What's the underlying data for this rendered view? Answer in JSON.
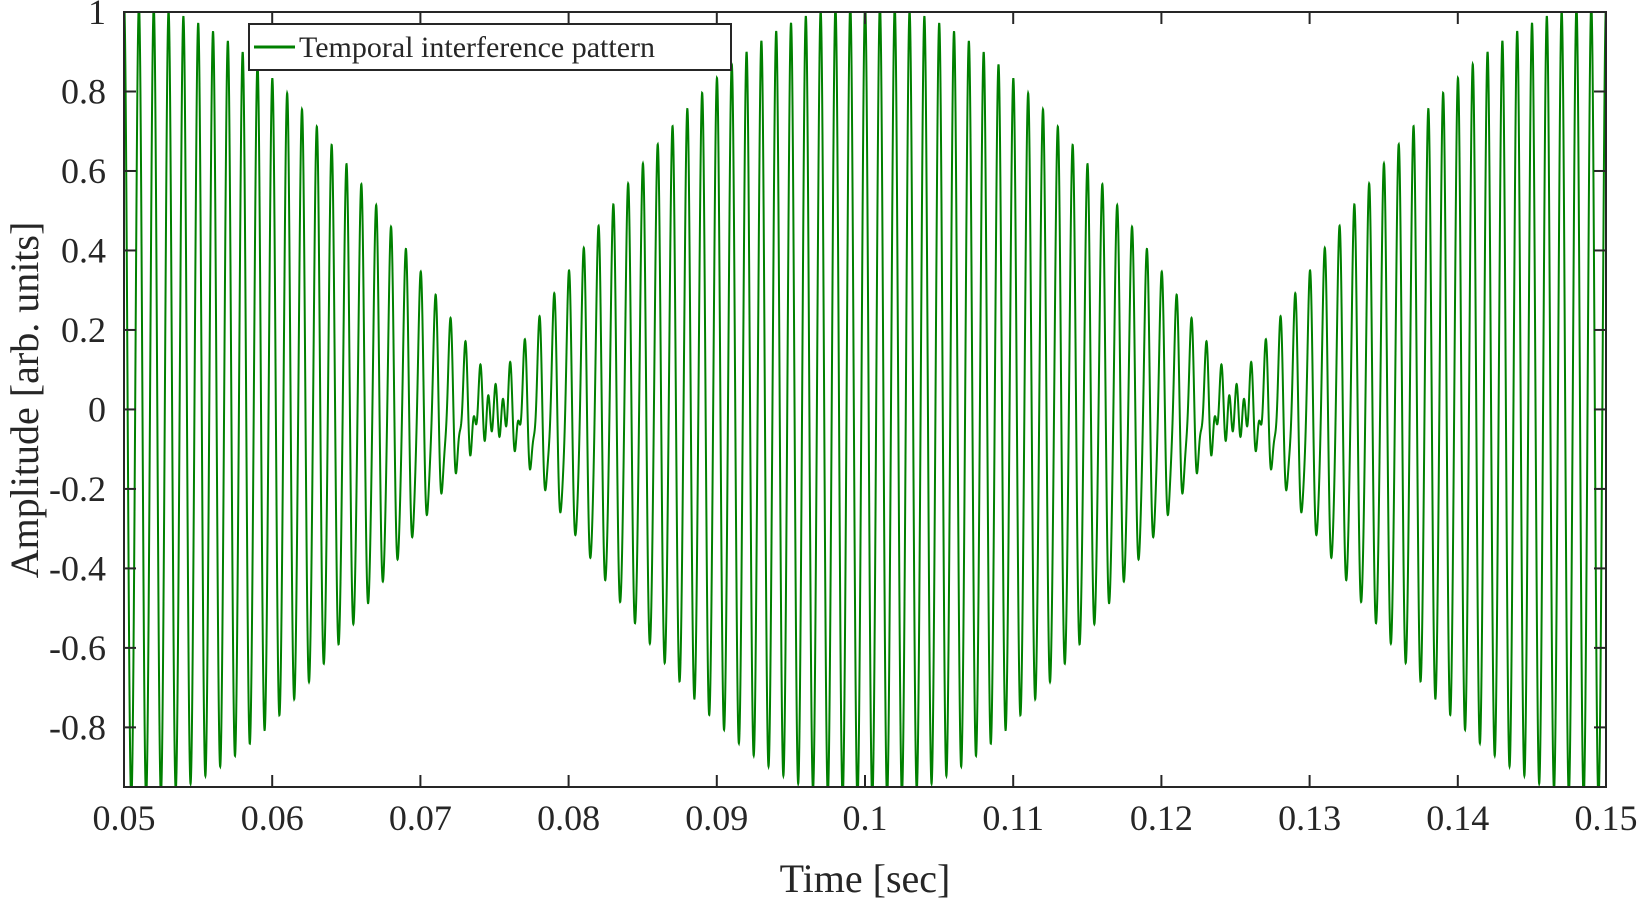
{
  "chart_data": {
    "type": "line",
    "title": "",
    "xlabel": "Time [sec]",
    "ylabel": "Amplitude [arb. units]",
    "xlim": [
      0.05,
      0.15
    ],
    "ylim": [
      -0.95,
      1.0
    ],
    "x_ticks": [
      0.05,
      0.06,
      0.07,
      0.08,
      0.09,
      0.1,
      0.11,
      0.12,
      0.13,
      0.14,
      0.15
    ],
    "x_tick_labels": [
      "0.05",
      "0.06",
      "0.07",
      "0.08",
      "0.09",
      "0.1",
      "0.11",
      "0.12",
      "0.13",
      "0.14",
      "0.15"
    ],
    "y_ticks": [
      -0.8,
      -0.6,
      -0.4,
      -0.2,
      0,
      0.2,
      0.4,
      0.6,
      0.8,
      1
    ],
    "y_tick_labels": [
      "-0.8",
      "-0.6",
      "-0.4",
      "-0.2",
      "0",
      "0.2",
      "0.4",
      "0.6",
      "0.8",
      "1"
    ],
    "grid": false,
    "legend_position": "top-left",
    "series": [
      {
        "name": "Temporal interference pattern",
        "color": "#008000",
        "carrier_frequency_hz": 1000,
        "beat_frequency_hz": 20,
        "peak_amplitude": 1.0,
        "envelope_peaks_at_sec": [
          0.05,
          0.1,
          0.15
        ],
        "envelope_nulls_at_sec": [
          0.075,
          0.125
        ]
      }
    ]
  }
}
